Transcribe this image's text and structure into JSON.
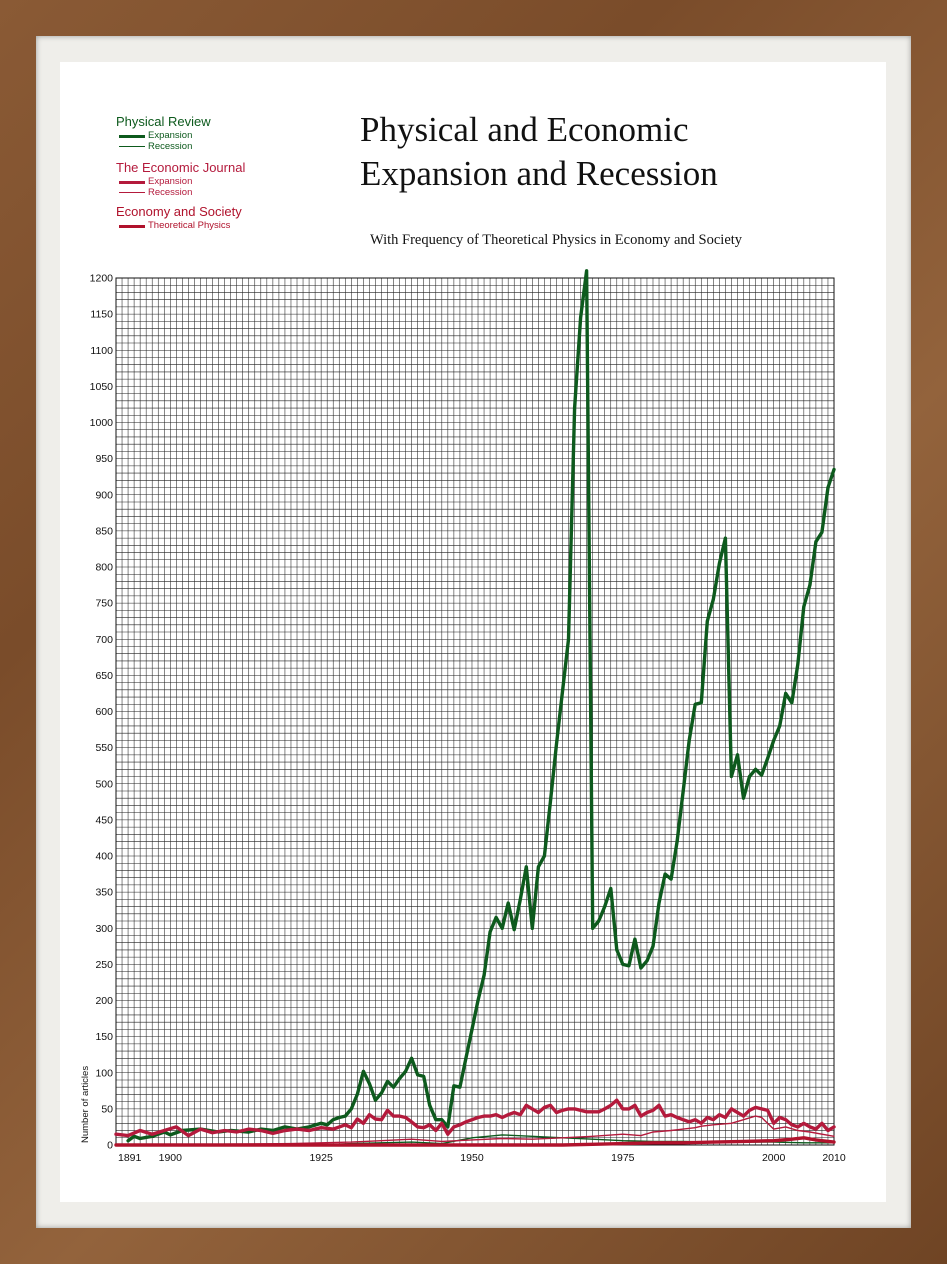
{
  "title_line1": "Physical and Economic",
  "title_line2": "Expansion and Recession",
  "subtitle": "With Frequency of Theoretical Physics in Economy and Society",
  "colors": {
    "green": "#0d5a1d",
    "crimson": "#b41a3c",
    "red": "#b0122c",
    "grid": "#222222"
  },
  "legend": [
    {
      "source": "Physical Review",
      "color": "#0d5a1d",
      "items": [
        {
          "label": "Expansion",
          "weight": "thick"
        },
        {
          "label": "Recession",
          "weight": "thin"
        }
      ]
    },
    {
      "source": "The Economic Journal",
      "color": "#b41a3c",
      "items": [
        {
          "label": "Expansion",
          "weight": "thick"
        },
        {
          "label": "Recession",
          "weight": "thin"
        }
      ]
    },
    {
      "source": "Economy and Society",
      "color": "#b0122c",
      "items": [
        {
          "label": "Theoretical Physics",
          "weight": "thick"
        }
      ]
    }
  ],
  "chart_data": {
    "type": "line",
    "title": "Physical and Economic Expansion and Recession",
    "subtitle": "With Frequency of Theoretical Physics in Economy and Society",
    "xlabel": "",
    "ylabel": "Number of articles",
    "xlim": [
      1891,
      2010
    ],
    "ylim": [
      0,
      1200
    ],
    "x_ticks": [
      1891,
      1900,
      1925,
      1950,
      1975,
      2000,
      2010
    ],
    "y_ticks": [
      0,
      50,
      100,
      150,
      200,
      250,
      300,
      350,
      400,
      450,
      500,
      550,
      600,
      650,
      700,
      750,
      800,
      850,
      900,
      950,
      1000,
      1050,
      1100,
      1150,
      1200
    ],
    "grid": true,
    "legend_position": "top-left",
    "series": [
      {
        "name": "Physical Review Expansion",
        "color": "#0d5a1d",
        "width": "thick",
        "points": [
          [
            1893,
            6
          ],
          [
            1894,
            12
          ],
          [
            1895,
            9
          ],
          [
            1897,
            12
          ],
          [
            1899,
            18
          ],
          [
            1900,
            14
          ],
          [
            1902,
            20
          ],
          [
            1905,
            22
          ],
          [
            1908,
            18
          ],
          [
            1910,
            20
          ],
          [
            1913,
            18
          ],
          [
            1915,
            22
          ],
          [
            1917,
            20
          ],
          [
            1919,
            25
          ],
          [
            1921,
            22
          ],
          [
            1923,
            25
          ],
          [
            1925,
            30
          ],
          [
            1926,
            28
          ],
          [
            1927,
            35
          ],
          [
            1928,
            38
          ],
          [
            1929,
            40
          ],
          [
            1930,
            50
          ],
          [
            1931,
            70
          ],
          [
            1932,
            102
          ],
          [
            1933,
            85
          ],
          [
            1934,
            62
          ],
          [
            1935,
            72
          ],
          [
            1936,
            88
          ],
          [
            1937,
            80
          ],
          [
            1938,
            92
          ],
          [
            1939,
            102
          ],
          [
            1940,
            120
          ],
          [
            1941,
            97
          ],
          [
            1942,
            95
          ],
          [
            1943,
            55
          ],
          [
            1944,
            35
          ],
          [
            1945,
            35
          ],
          [
            1946,
            25
          ],
          [
            1947,
            82
          ],
          [
            1948,
            80
          ],
          [
            1949,
            120
          ],
          [
            1950,
            160
          ],
          [
            1951,
            200
          ],
          [
            1952,
            235
          ],
          [
            1953,
            295
          ],
          [
            1954,
            315
          ],
          [
            1955,
            300
          ],
          [
            1956,
            335
          ],
          [
            1957,
            298
          ],
          [
            1958,
            340
          ],
          [
            1959,
            385
          ],
          [
            1960,
            300
          ],
          [
            1961,
            385
          ],
          [
            1962,
            400
          ],
          [
            1963,
            475
          ],
          [
            1964,
            555
          ],
          [
            1965,
            628
          ],
          [
            1966,
            700
          ],
          [
            1967,
            1020
          ],
          [
            1968,
            1145
          ],
          [
            1969,
            1210
          ],
          [
            1970,
            300
          ],
          [
            1971,
            310
          ],
          [
            1972,
            330
          ],
          [
            1973,
            355
          ],
          [
            1974,
            270
          ],
          [
            1975,
            250
          ],
          [
            1976,
            248
          ],
          [
            1977,
            285
          ],
          [
            1978,
            245
          ],
          [
            1979,
            255
          ],
          [
            1980,
            275
          ],
          [
            1981,
            335
          ],
          [
            1982,
            375
          ],
          [
            1983,
            368
          ],
          [
            1984,
            420
          ],
          [
            1985,
            490
          ],
          [
            1986,
            560
          ],
          [
            1987,
            610
          ],
          [
            1988,
            612
          ],
          [
            1989,
            725
          ],
          [
            1990,
            755
          ],
          [
            1991,
            805
          ],
          [
            1992,
            840
          ],
          [
            1993,
            510
          ],
          [
            1994,
            540
          ],
          [
            1995,
            480
          ],
          [
            1996,
            510
          ],
          [
            1997,
            520
          ],
          [
            1998,
            512
          ],
          [
            1999,
            535
          ],
          [
            2000,
            560
          ],
          [
            2001,
            580
          ],
          [
            2002,
            625
          ],
          [
            2003,
            612
          ],
          [
            2004,
            665
          ],
          [
            2005,
            745
          ],
          [
            2006,
            775
          ],
          [
            2007,
            835
          ],
          [
            2008,
            848
          ],
          [
            2009,
            910
          ],
          [
            2010,
            935
          ]
        ]
      },
      {
        "name": "Physical Review Recession",
        "color": "#0d5a1d",
        "width": "thin",
        "points": [
          [
            1891,
            0
          ],
          [
            1925,
            0
          ],
          [
            1930,
            2
          ],
          [
            1935,
            3
          ],
          [
            1940,
            4
          ],
          [
            1945,
            2
          ],
          [
            1950,
            10
          ],
          [
            1955,
            14
          ],
          [
            1960,
            12
          ],
          [
            1965,
            10
          ],
          [
            1970,
            8
          ],
          [
            1975,
            6
          ],
          [
            1980,
            5
          ],
          [
            1985,
            5
          ],
          [
            1990,
            4
          ],
          [
            1995,
            4
          ],
          [
            2000,
            4
          ],
          [
            2005,
            3
          ],
          [
            2010,
            3
          ]
        ]
      },
      {
        "name": "The Economic Journal Expansion",
        "color": "#b41a3c",
        "width": "thick",
        "points": [
          [
            1891,
            15
          ],
          [
            1893,
            13
          ],
          [
            1895,
            20
          ],
          [
            1897,
            15
          ],
          [
            1899,
            20
          ],
          [
            1901,
            25
          ],
          [
            1903,
            13
          ],
          [
            1905,
            22
          ],
          [
            1907,
            17
          ],
          [
            1909,
            20
          ],
          [
            1911,
            18
          ],
          [
            1913,
            22
          ],
          [
            1915,
            20
          ],
          [
            1917,
            16
          ],
          [
            1919,
            20
          ],
          [
            1921,
            22
          ],
          [
            1923,
            20
          ],
          [
            1925,
            24
          ],
          [
            1927,
            22
          ],
          [
            1929,
            28
          ],
          [
            1930,
            24
          ],
          [
            1931,
            36
          ],
          [
            1932,
            30
          ],
          [
            1933,
            42
          ],
          [
            1934,
            36
          ],
          [
            1935,
            35
          ],
          [
            1936,
            48
          ],
          [
            1937,
            40
          ],
          [
            1938,
            40
          ],
          [
            1939,
            38
          ],
          [
            1940,
            32
          ],
          [
            1941,
            25
          ],
          [
            1942,
            24
          ],
          [
            1943,
            28
          ],
          [
            1944,
            20
          ],
          [
            1945,
            30
          ],
          [
            1946,
            15
          ],
          [
            1947,
            25
          ],
          [
            1948,
            28
          ],
          [
            1949,
            32
          ],
          [
            1950,
            35
          ],
          [
            1951,
            38
          ],
          [
            1952,
            40
          ],
          [
            1953,
            40
          ],
          [
            1954,
            42
          ],
          [
            1955,
            38
          ],
          [
            1956,
            42
          ],
          [
            1957,
            45
          ],
          [
            1958,
            42
          ],
          [
            1959,
            55
          ],
          [
            1960,
            50
          ],
          [
            1961,
            45
          ],
          [
            1962,
            52
          ],
          [
            1963,
            55
          ],
          [
            1964,
            45
          ],
          [
            1965,
            48
          ],
          [
            1966,
            50
          ],
          [
            1967,
            50
          ],
          [
            1968,
            48
          ],
          [
            1969,
            46
          ],
          [
            1970,
            46
          ],
          [
            1971,
            46
          ],
          [
            1972,
            50
          ],
          [
            1973,
            55
          ],
          [
            1974,
            62
          ],
          [
            1975,
            50
          ],
          [
            1976,
            50
          ],
          [
            1977,
            55
          ],
          [
            1978,
            40
          ],
          [
            1979,
            45
          ],
          [
            1980,
            48
          ],
          [
            1981,
            55
          ],
          [
            1982,
            40
          ],
          [
            1983,
            42
          ],
          [
            1984,
            38
          ],
          [
            1985,
            35
          ],
          [
            1986,
            32
          ],
          [
            1987,
            35
          ],
          [
            1988,
            30
          ],
          [
            1989,
            38
          ],
          [
            1990,
            35
          ],
          [
            1991,
            42
          ],
          [
            1992,
            38
          ],
          [
            1993,
            50
          ],
          [
            1994,
            45
          ],
          [
            1995,
            40
          ],
          [
            1996,
            48
          ],
          [
            1997,
            52
          ],
          [
            1998,
            50
          ],
          [
            1999,
            48
          ],
          [
            2000,
            30
          ],
          [
            2001,
            38
          ],
          [
            2002,
            35
          ],
          [
            2003,
            28
          ],
          [
            2004,
            25
          ],
          [
            2005,
            30
          ],
          [
            2006,
            25
          ],
          [
            2007,
            22
          ],
          [
            2008,
            30
          ],
          [
            2009,
            20
          ],
          [
            2010,
            25
          ]
        ]
      },
      {
        "name": "The Economic Journal Recession",
        "color": "#b41a3c",
        "width": "thin",
        "points": [
          [
            1891,
            0
          ],
          [
            1920,
            2
          ],
          [
            1925,
            3
          ],
          [
            1930,
            4
          ],
          [
            1935,
            6
          ],
          [
            1940,
            8
          ],
          [
            1945,
            5
          ],
          [
            1950,
            7
          ],
          [
            1955,
            9
          ],
          [
            1960,
            8
          ],
          [
            1965,
            10
          ],
          [
            1970,
            12
          ],
          [
            1975,
            15
          ],
          [
            1978,
            13
          ],
          [
            1980,
            18
          ],
          [
            1983,
            20
          ],
          [
            1985,
            22
          ],
          [
            1987,
            24
          ],
          [
            1988,
            26
          ],
          [
            1990,
            28
          ],
          [
            1993,
            30
          ],
          [
            1995,
            35
          ],
          [
            1997,
            40
          ],
          [
            1998,
            38
          ],
          [
            2000,
            22
          ],
          [
            2002,
            25
          ],
          [
            2004,
            20
          ],
          [
            2006,
            18
          ],
          [
            2008,
            15
          ],
          [
            2010,
            12
          ]
        ]
      },
      {
        "name": "Economy and Society Theoretical Physics",
        "color": "#b0122c",
        "width": "thick",
        "points": [
          [
            1891,
            0
          ],
          [
            1900,
            0
          ],
          [
            1925,
            0
          ],
          [
            1950,
            0
          ],
          [
            1965,
            0
          ],
          [
            1970,
            1
          ],
          [
            1975,
            2
          ],
          [
            1980,
            3
          ],
          [
            1985,
            3
          ],
          [
            1990,
            4
          ],
          [
            1995,
            5
          ],
          [
            2000,
            6
          ],
          [
            2003,
            8
          ],
          [
            2005,
            10
          ],
          [
            2007,
            7
          ],
          [
            2008,
            6
          ],
          [
            2010,
            4
          ]
        ]
      }
    ]
  }
}
